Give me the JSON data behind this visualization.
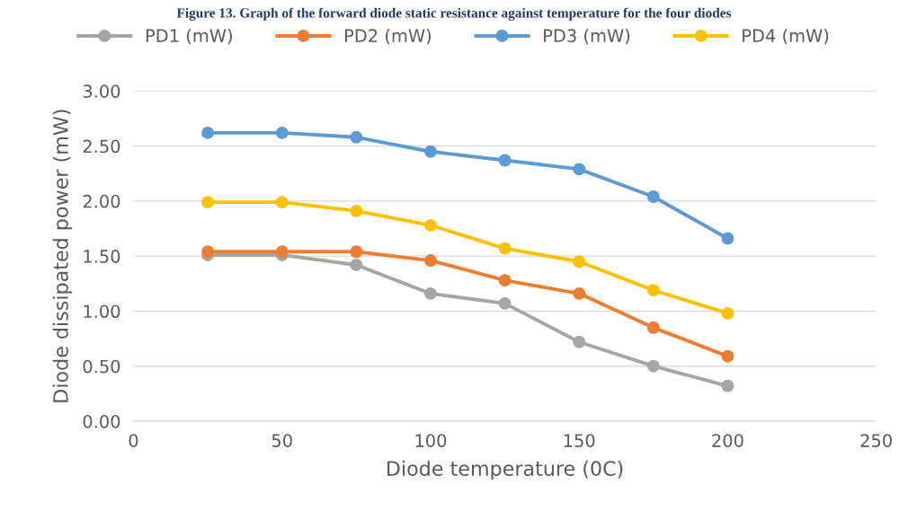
{
  "chart_data": {
    "type": "line",
    "title": "Figure 13. Graph of the forward diode static resistance against temperature for the four diodes",
    "xlabel": "Diode temperature (0C)",
    "ylabel": "Diode dissipated power (mW)",
    "x": [
      25,
      50,
      75,
      100,
      125,
      150,
      175,
      200
    ],
    "series": [
      {
        "name": "PD1 (mW)",
        "color": "#a5a5a5",
        "values": [
          1.51,
          1.51,
          1.42,
          1.16,
          1.07,
          0.72,
          0.5,
          0.32
        ]
      },
      {
        "name": "PD2 (mW)",
        "color": "#ed7d31",
        "values": [
          1.54,
          1.54,
          1.54,
          1.46,
          1.28,
          1.16,
          0.85,
          0.59
        ]
      },
      {
        "name": "PD3 (mW)",
        "color": "#5b9bd5",
        "values": [
          2.62,
          2.62,
          2.58,
          2.45,
          2.37,
          2.29,
          2.04,
          1.66
        ]
      },
      {
        "name": "PD4 (mW)",
        "color": "#ffc000",
        "values": [
          1.99,
          1.99,
          1.91,
          1.78,
          1.57,
          1.45,
          1.19,
          0.98
        ]
      }
    ],
    "xlim": [
      0,
      250
    ],
    "xticks": [
      0,
      50,
      100,
      150,
      200,
      250
    ],
    "ylim": [
      0,
      3
    ],
    "yticks": [
      {
        "value": 0,
        "label": "0.00"
      },
      {
        "value": 0.5,
        "label": "0.50"
      },
      {
        "value": 1,
        "label": "1.00"
      },
      {
        "value": 1.5,
        "label": "1.50"
      },
      {
        "value": 2,
        "label": "2.00"
      },
      {
        "value": 2.5,
        "label": "2.50"
      },
      {
        "value": 3,
        "label": "3.00"
      }
    ],
    "grid": "y",
    "legend": "top",
    "marker": "circle",
    "line_style": "solid"
  }
}
